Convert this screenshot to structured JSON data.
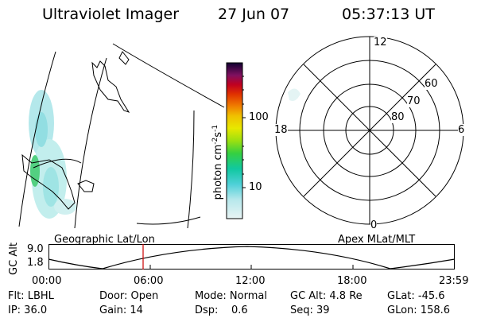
{
  "header": {
    "instrument": "Ultraviolet Imager",
    "date": "27 Jun 07",
    "time": "05:37:13 UT"
  },
  "colorbar": {
    "unit_label": "photon cm",
    "unit_sup1": "-2",
    "unit_mid": "s",
    "unit_sup2": "-1",
    "ticks": [
      "100",
      "10"
    ]
  },
  "polar_plot": {
    "mlt_top": "12",
    "mlt_right": "6",
    "mlt_bottom": "0",
    "mlt_left": "18",
    "lat_labels": [
      "60",
      "70",
      "80"
    ]
  },
  "map": {
    "label": "Geographic Lat/Lon"
  },
  "apex_label": "Apex MLat/MLT",
  "altitude_strip": {
    "axis_label": "GC Alt",
    "y_top": "9.0",
    "y_bottom": "1.8",
    "time_ticks": [
      "00:00",
      "06:00",
      "12:00",
      "18:00",
      "23:59"
    ],
    "current_time_marker": "05:37"
  },
  "footer": {
    "row1": [
      "Flt: LBHL",
      "Door: Open",
      "Mode: Normal",
      "GC Alt: 4.8 Re",
      "GLat: -45.6"
    ],
    "row2": [
      "IP: 36.0",
      "Gain: 14",
      "Dsp:    0.6",
      "Seq: 39",
      "GLon: 158.6"
    ]
  },
  "colors": {
    "marker": "#cc0000",
    "line": "#000000"
  }
}
